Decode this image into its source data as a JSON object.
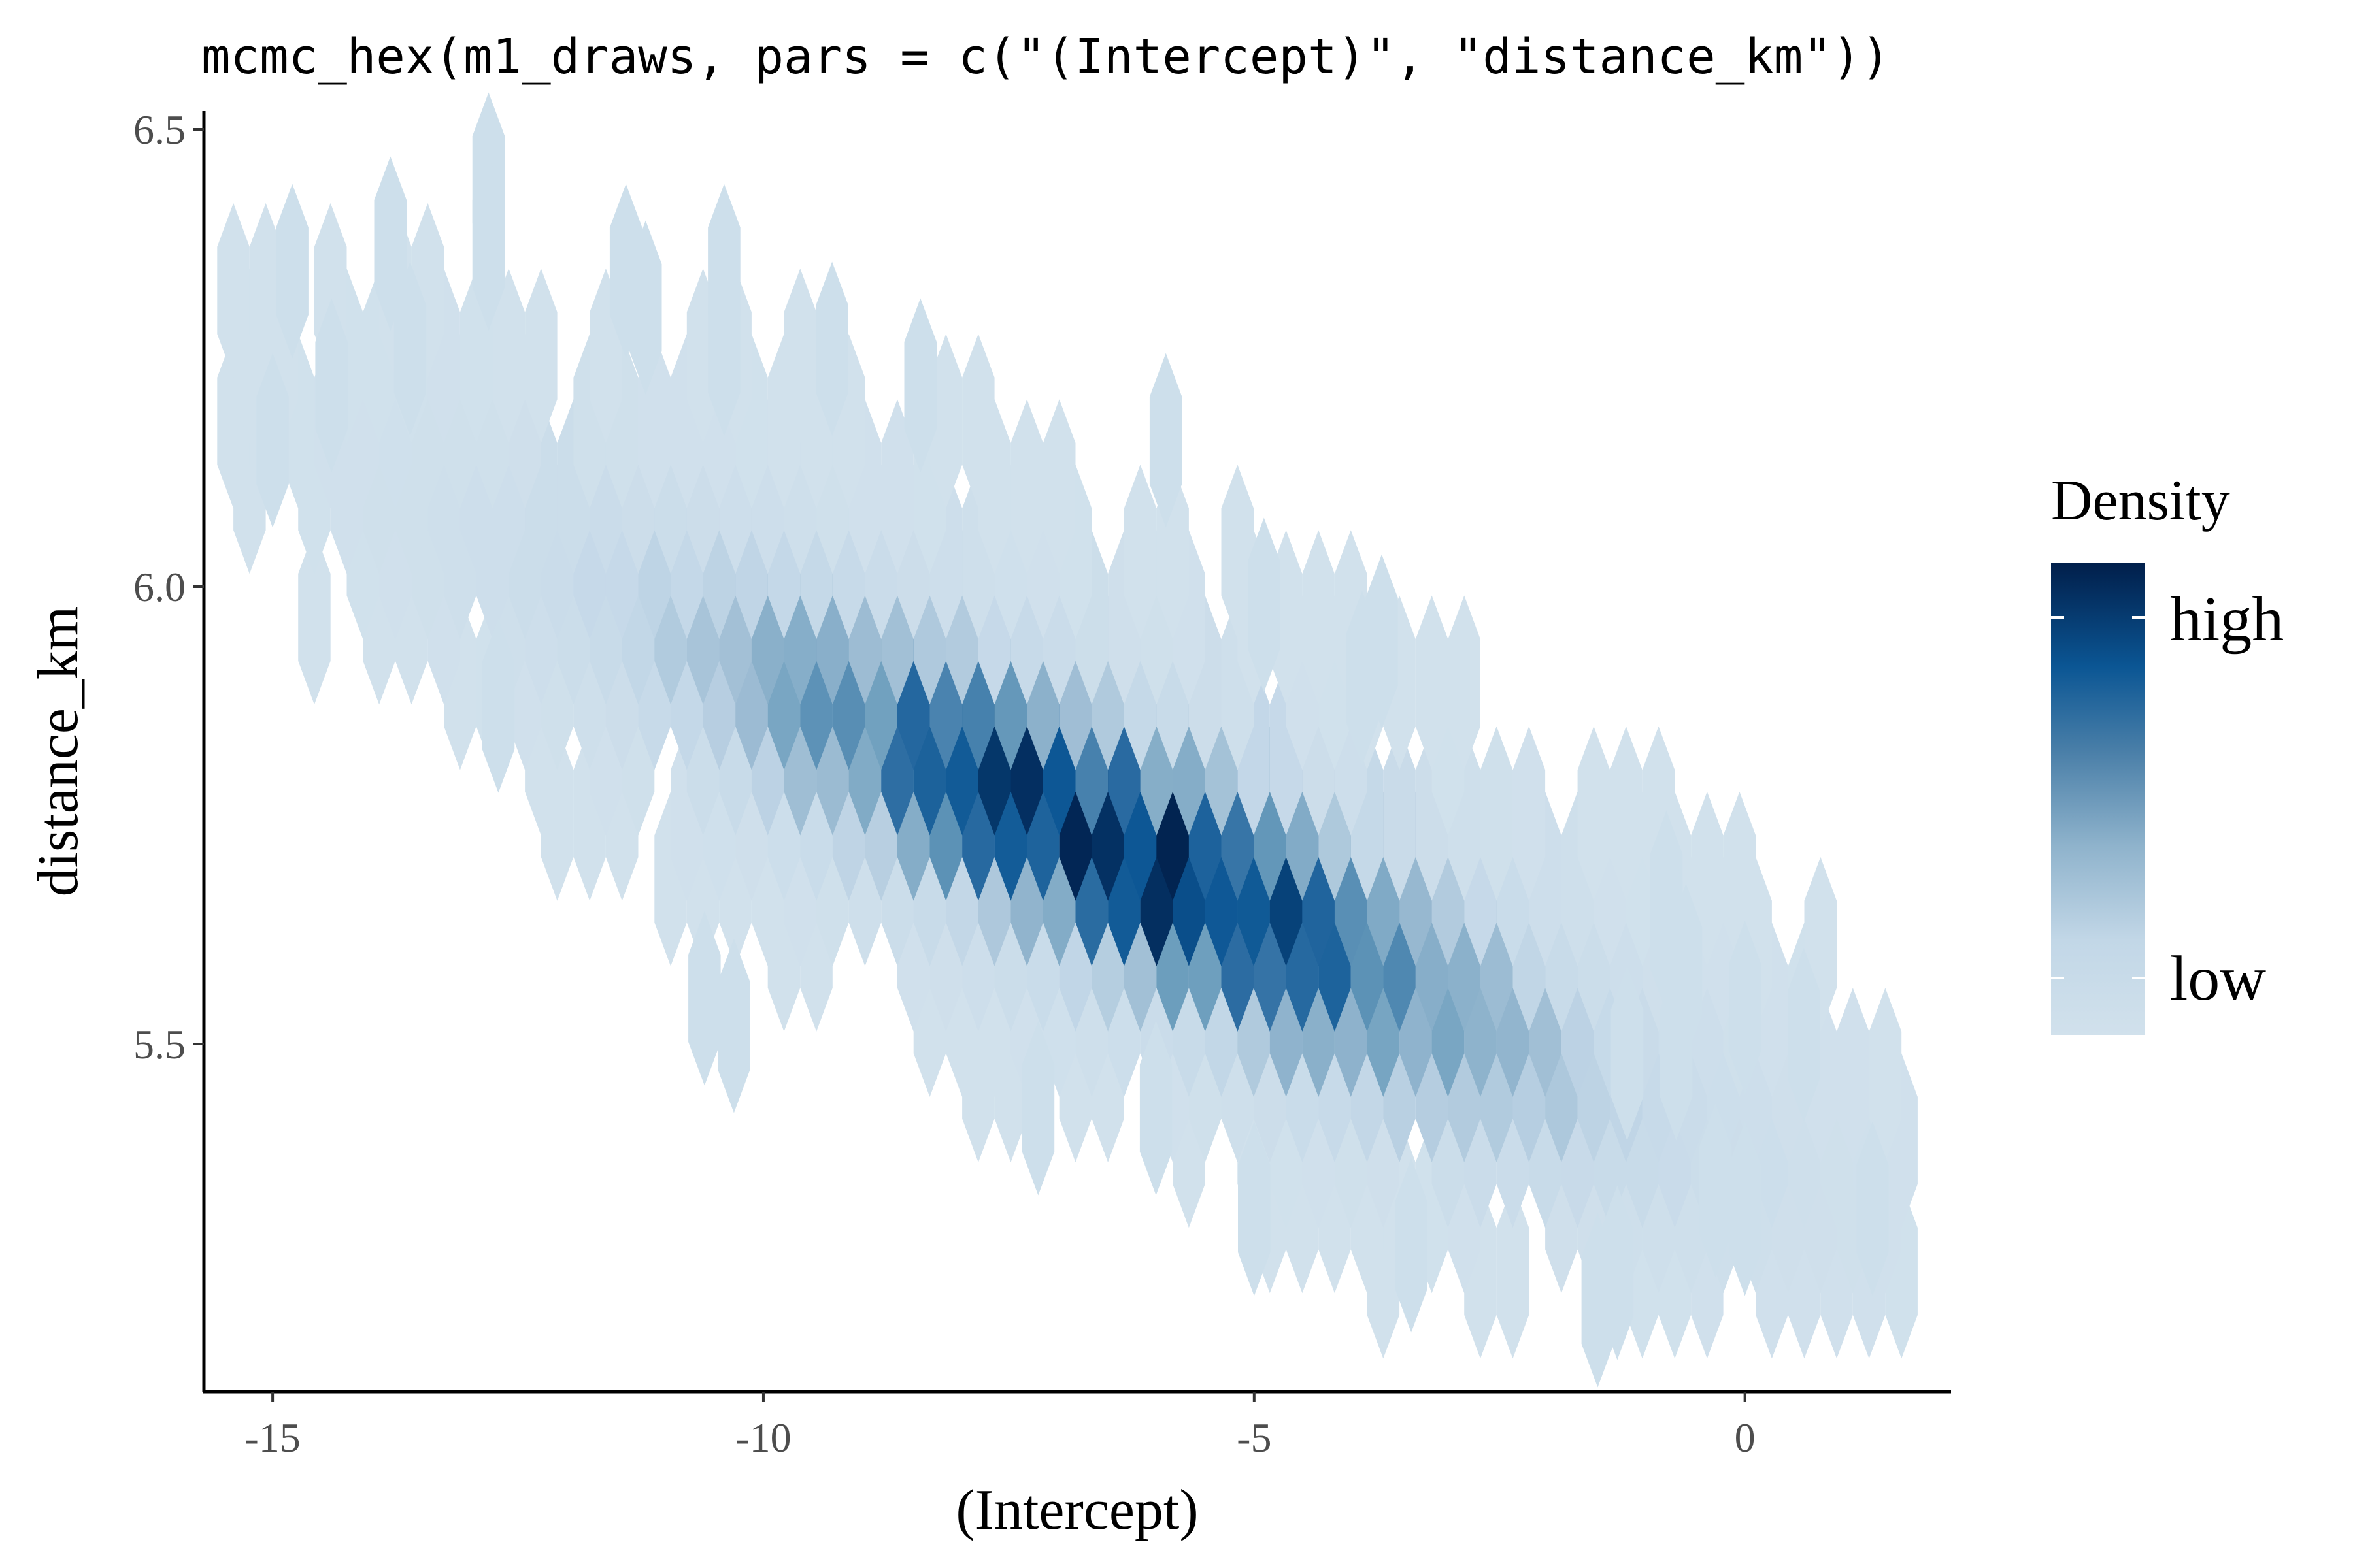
{
  "chart_data": {
    "type": "heatmap",
    "subtype": "hexbin",
    "title": "mcmc_hex(m1_draws, pars = c(\"(Intercept)\", \"distance_km\"))",
    "xlabel": "(Intercept)",
    "ylabel": "distance_km",
    "xlim": [
      -15.7,
      2.1
    ],
    "ylim": [
      5.12,
      6.52
    ],
    "x_ticks": [
      -15,
      -10,
      -5,
      0
    ],
    "x_tick_labels": [
      "-15",
      "-10",
      "-5",
      "0"
    ],
    "y_ticks": [
      5.5,
      6.0,
      6.5
    ],
    "y_tick_labels": [
      "5.5",
      "6.0",
      "6.5"
    ],
    "grid": false,
    "legend": {
      "title": "Density",
      "high_label": "high",
      "low_label": "low",
      "placement": "right"
    },
    "colors": {
      "low": "#d1e1ec",
      "mid_low": "#b5cfe2",
      "mid": "#6c9ebd",
      "mid_high": "#0b5694",
      "high": "#011f4b"
    },
    "hex_bin_width": 0.33,
    "hex_bin_height": 0.143,
    "density_center": {
      "x": -6.3,
      "y": 5.74
    },
    "cells": [
      [
        -12.8,
        6.445,
        0.05
      ],
      [
        -13.8,
        6.375,
        0.05
      ],
      [
        -12.8,
        6.375,
        0.05
      ],
      [
        -14.8,
        6.345,
        0.05
      ],
      [
        -11.4,
        6.345,
        0.05
      ],
      [
        -10.4,
        6.345,
        0.05
      ],
      [
        -11.2,
        6.305,
        0.05
      ],
      [
        -13.6,
        6.26,
        0.05
      ],
      [
        -10.4,
        6.26,
        0.05
      ],
      [
        -9.3,
        6.26,
        0.05
      ],
      [
        -14.4,
        6.22,
        0.05
      ],
      [
        -8.4,
        6.22,
        0.05
      ],
      [
        -15.0,
        6.16,
        0.05
      ],
      [
        -5.9,
        6.16,
        0.05
      ],
      [
        -4.9,
        5.98,
        0.05
      ],
      [
        -3.7,
        5.94,
        0.05
      ],
      [
        -3.9,
        5.9,
        0.05
      ],
      [
        -12.7,
        5.87,
        0.05
      ],
      [
        -10.6,
        5.55,
        0.05
      ],
      [
        -10.3,
        5.52,
        0.05
      ],
      [
        -7.2,
        5.43,
        0.05
      ],
      [
        -6.0,
        5.43,
        0.05
      ],
      [
        -1.2,
        5.49,
        0.05
      ],
      [
        -0.7,
        5.49,
        0.05
      ],
      [
        0.6,
        5.51,
        0.05
      ],
      [
        0.0,
        5.54,
        0.05
      ],
      [
        1.3,
        5.32,
        0.05
      ],
      [
        0.0,
        5.32,
        0.05
      ],
      [
        -0.3,
        5.34,
        0.05
      ],
      [
        -1.3,
        5.25,
        0.05
      ],
      [
        -1.5,
        5.22,
        0.05
      ],
      [
        -2.0,
        5.18,
        0.05
      ],
      [
        -1.5,
        5.18,
        0.05
      ],
      [
        -0.8,
        5.66,
        0.05
      ],
      [
        -0.8,
        5.63,
        0.05
      ],
      [
        -0.6,
        5.58,
        0.05
      ],
      [
        -5.0,
        5.32,
        0.05
      ],
      [
        -3.4,
        5.28,
        0.05
      ]
    ]
  }
}
